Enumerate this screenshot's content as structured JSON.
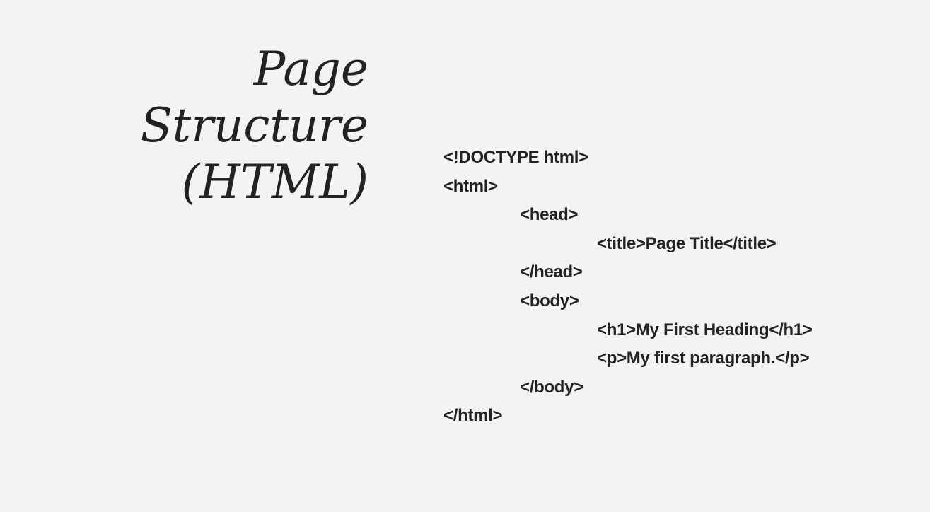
{
  "slide": {
    "title_lines": [
      "Page",
      "Structure",
      "(HTML)"
    ],
    "code_lines": [
      {
        "text": "<!DOCTYPE html>",
        "indent": 0
      },
      {
        "text": "<html>",
        "indent": 0
      },
      {
        "text": "<head>",
        "indent": 1
      },
      {
        "text": "<title>Page Title</title>",
        "indent": 2
      },
      {
        "text": "</head>",
        "indent": 1
      },
      {
        "text": "<body>",
        "indent": 1
      },
      {
        "text": "<h1>My First Heading</h1>",
        "indent": 2
      },
      {
        "text": "<p>My first paragraph.</p>",
        "indent": 2
      },
      {
        "text": "</body>",
        "indent": 1
      },
      {
        "text": "</html>",
        "indent": 0
      }
    ]
  },
  "colors": {
    "background": "#f3f3f3",
    "text": "#222222"
  }
}
